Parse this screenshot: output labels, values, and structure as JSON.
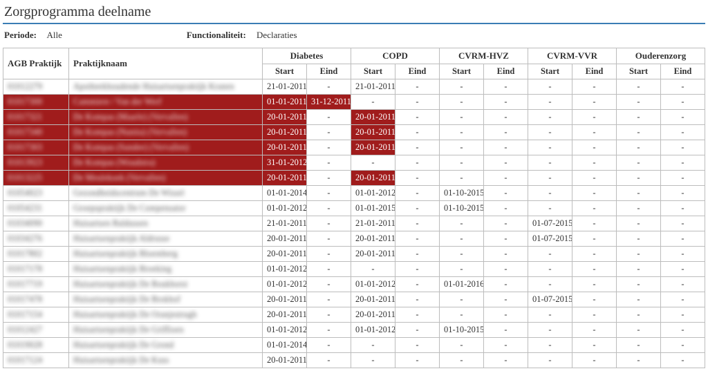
{
  "header": {
    "title": "Zorgprogramma deelname",
    "periode_label": "Periode:",
    "periode_value": "Alle",
    "func_label": "Functionaliteit:",
    "func_value": "Declaraties"
  },
  "table": {
    "col_agb": "AGB Praktijk",
    "col_pnaam": "Praktijknaam",
    "programs": [
      "Diabetes",
      "COPD",
      "CVRM-HVZ",
      "CVRM-VVR",
      "Ouderenzorg"
    ],
    "sub_start": "Start",
    "sub_eind": "Eind",
    "dash": "-",
    "rows": [
      {
        "agb": "01012279",
        "pnaam": "Apotheekhoudende Huisartsenpraktijk Kranen",
        "red": false,
        "cells": [
          {
            "start": "21-01-2011",
            "eind": "-",
            "sRed": false,
            "eRed": false
          },
          {
            "start": "21-01-2011",
            "eind": "-",
            "sRed": false,
            "eRed": false
          },
          {
            "start": "-",
            "eind": "-",
            "sRed": false,
            "eRed": false
          },
          {
            "start": "-",
            "eind": "-",
            "sRed": false,
            "eRed": false
          },
          {
            "start": "-",
            "eind": "-",
            "sRed": false,
            "eRed": false
          }
        ]
      },
      {
        "agb": "01017300",
        "pnaam": "Cammiere / Van der Werf",
        "red": true,
        "cells": [
          {
            "start": "01-01-2011",
            "eind": "31-12-2011",
            "sRed": true,
            "eRed": true
          },
          {
            "start": "-",
            "eind": "-",
            "sRed": false,
            "eRed": false
          },
          {
            "start": "-",
            "eind": "-",
            "sRed": false,
            "eRed": false
          },
          {
            "start": "-",
            "eind": "-",
            "sRed": false,
            "eRed": false
          },
          {
            "start": "-",
            "eind": "-",
            "sRed": false,
            "eRed": false
          }
        ]
      },
      {
        "agb": "01017321",
        "pnaam": "De Kompas (Maarle) (Vervallen)",
        "red": true,
        "cells": [
          {
            "start": "20-01-2011",
            "eind": "-",
            "sRed": true,
            "eRed": false
          },
          {
            "start": "20-01-2011",
            "eind": "-",
            "sRed": true,
            "eRed": false
          },
          {
            "start": "-",
            "eind": "-",
            "sRed": false,
            "eRed": false
          },
          {
            "start": "-",
            "eind": "-",
            "sRed": false,
            "eRed": false
          },
          {
            "start": "-",
            "eind": "-",
            "sRed": false,
            "eRed": false
          }
        ]
      },
      {
        "agb": "01017340",
        "pnaam": "De Kompas (Nunita) (Vervallen)",
        "red": true,
        "cells": [
          {
            "start": "20-01-2011",
            "eind": "-",
            "sRed": true,
            "eRed": false
          },
          {
            "start": "20-01-2011",
            "eind": "-",
            "sRed": true,
            "eRed": false
          },
          {
            "start": "-",
            "eind": "-",
            "sRed": false,
            "eRed": false
          },
          {
            "start": "-",
            "eind": "-",
            "sRed": false,
            "eRed": false
          },
          {
            "start": "-",
            "eind": "-",
            "sRed": false,
            "eRed": false
          }
        ]
      },
      {
        "agb": "01017303",
        "pnaam": "De Kompas (Sundee) (Vervallen)",
        "red": true,
        "cells": [
          {
            "start": "20-01-2011",
            "eind": "-",
            "sRed": true,
            "eRed": false
          },
          {
            "start": "20-01-2011",
            "eind": "-",
            "sRed": true,
            "eRed": false
          },
          {
            "start": "-",
            "eind": "-",
            "sRed": false,
            "eRed": false
          },
          {
            "start": "-",
            "eind": "-",
            "sRed": false,
            "eRed": false
          },
          {
            "start": "-",
            "eind": "-",
            "sRed": false,
            "eRed": false
          }
        ]
      },
      {
        "agb": "01013923",
        "pnaam": "De Kompas (Woudstra)",
        "red": true,
        "cells": [
          {
            "start": "31-01-2012",
            "eind": "-",
            "sRed": true,
            "eRed": false
          },
          {
            "start": "-",
            "eind": "-",
            "sRed": false,
            "eRed": false
          },
          {
            "start": "-",
            "eind": "-",
            "sRed": false,
            "eRed": false
          },
          {
            "start": "-",
            "eind": "-",
            "sRed": false,
            "eRed": false
          },
          {
            "start": "-",
            "eind": "-",
            "sRed": false,
            "eRed": false
          }
        ]
      },
      {
        "agb": "01013225",
        "pnaam": "De Meulekoek (Vervallen)",
        "red": true,
        "cells": [
          {
            "start": "20-01-2011",
            "eind": "-",
            "sRed": true,
            "eRed": false
          },
          {
            "start": "20-01-2011",
            "eind": "-",
            "sRed": true,
            "eRed": false
          },
          {
            "start": "-",
            "eind": "-",
            "sRed": false,
            "eRed": false
          },
          {
            "start": "-",
            "eind": "-",
            "sRed": false,
            "eRed": false
          },
          {
            "start": "-",
            "eind": "-",
            "sRed": false,
            "eRed": false
          }
        ]
      },
      {
        "agb": "01054023",
        "pnaam": "Gezondheidscentrum De Wissel",
        "red": false,
        "cells": [
          {
            "start": "01-01-2014",
            "eind": "-",
            "sRed": false,
            "eRed": false
          },
          {
            "start": "01-01-2012",
            "eind": "-",
            "sRed": false,
            "eRed": false
          },
          {
            "start": "01-10-2015",
            "eind": "-",
            "sRed": false,
            "eRed": false
          },
          {
            "start": "-",
            "eind": "-",
            "sRed": false,
            "eRed": false
          },
          {
            "start": "-",
            "eind": "-",
            "sRed": false,
            "eRed": false
          }
        ]
      },
      {
        "agb": "01054231",
        "pnaam": "Groepspraktijk De Compensator",
        "red": false,
        "cells": [
          {
            "start": "01-01-2012",
            "eind": "-",
            "sRed": false,
            "eRed": false
          },
          {
            "start": "01-01-2015",
            "eind": "-",
            "sRed": false,
            "eRed": false
          },
          {
            "start": "01-10-2015",
            "eind": "-",
            "sRed": false,
            "eRed": false
          },
          {
            "start": "-",
            "eind": "-",
            "sRed": false,
            "eRed": false
          },
          {
            "start": "-",
            "eind": "-",
            "sRed": false,
            "eRed": false
          }
        ]
      },
      {
        "agb": "01034090",
        "pnaam": "Huisartsen Baldussen",
        "red": false,
        "cells": [
          {
            "start": "21-01-2011",
            "eind": "-",
            "sRed": false,
            "eRed": false
          },
          {
            "start": "21-01-2011",
            "eind": "-",
            "sRed": false,
            "eRed": false
          },
          {
            "start": "-",
            "eind": "-",
            "sRed": false,
            "eRed": false
          },
          {
            "start": "01-07-2015",
            "eind": "-",
            "sRed": false,
            "eRed": false
          },
          {
            "start": "-",
            "eind": "-",
            "sRed": false,
            "eRed": false
          }
        ]
      },
      {
        "agb": "01034276",
        "pnaam": "Huisartsenpraktijk Aldrusse",
        "red": false,
        "cells": [
          {
            "start": "20-01-2011",
            "eind": "-",
            "sRed": false,
            "eRed": false
          },
          {
            "start": "20-01-2011",
            "eind": "-",
            "sRed": false,
            "eRed": false
          },
          {
            "start": "-",
            "eind": "-",
            "sRed": false,
            "eRed": false
          },
          {
            "start": "01-07-2015",
            "eind": "-",
            "sRed": false,
            "eRed": false
          },
          {
            "start": "-",
            "eind": "-",
            "sRed": false,
            "eRed": false
          }
        ]
      },
      {
        "agb": "01017802",
        "pnaam": "Huisartsenpraktijk Bloemberg",
        "red": false,
        "cells": [
          {
            "start": "20-01-2011",
            "eind": "-",
            "sRed": false,
            "eRed": false
          },
          {
            "start": "20-01-2011",
            "eind": "-",
            "sRed": false,
            "eRed": false
          },
          {
            "start": "-",
            "eind": "-",
            "sRed": false,
            "eRed": false
          },
          {
            "start": "-",
            "eind": "-",
            "sRed": false,
            "eRed": false
          },
          {
            "start": "-",
            "eind": "-",
            "sRed": false,
            "eRed": false
          }
        ]
      },
      {
        "agb": "01017178",
        "pnaam": "Huisartsenpraktijk Broeking",
        "red": false,
        "cells": [
          {
            "start": "01-01-2012",
            "eind": "-",
            "sRed": false,
            "eRed": false
          },
          {
            "start": "-",
            "eind": "-",
            "sRed": false,
            "eRed": false
          },
          {
            "start": "-",
            "eind": "-",
            "sRed": false,
            "eRed": false
          },
          {
            "start": "-",
            "eind": "-",
            "sRed": false,
            "eRed": false
          },
          {
            "start": "-",
            "eind": "-",
            "sRed": false,
            "eRed": false
          }
        ]
      },
      {
        "agb": "01017719",
        "pnaam": "Huisartsenpraktijk De Boukhorst",
        "red": false,
        "cells": [
          {
            "start": "01-01-2012",
            "eind": "-",
            "sRed": false,
            "eRed": false
          },
          {
            "start": "01-01-2012",
            "eind": "-",
            "sRed": false,
            "eRed": false
          },
          {
            "start": "01-01-2016",
            "eind": "-",
            "sRed": false,
            "eRed": false
          },
          {
            "start": "-",
            "eind": "-",
            "sRed": false,
            "eRed": false
          },
          {
            "start": "-",
            "eind": "-",
            "sRed": false,
            "eRed": false
          }
        ]
      },
      {
        "agb": "01017478",
        "pnaam": "Huisartsenpraktijk De Brokhof",
        "red": false,
        "cells": [
          {
            "start": "20-01-2011",
            "eind": "-",
            "sRed": false,
            "eRed": false
          },
          {
            "start": "20-01-2011",
            "eind": "-",
            "sRed": false,
            "eRed": false
          },
          {
            "start": "-",
            "eind": "-",
            "sRed": false,
            "eRed": false
          },
          {
            "start": "01-07-2015",
            "eind": "-",
            "sRed": false,
            "eRed": false
          },
          {
            "start": "-",
            "eind": "-",
            "sRed": false,
            "eRed": false
          }
        ]
      },
      {
        "agb": "01017154",
        "pnaam": "Huisartsenpraktijk De Oranjestrugh",
        "red": false,
        "cells": [
          {
            "start": "20-01-2011",
            "eind": "-",
            "sRed": false,
            "eRed": false
          },
          {
            "start": "20-01-2011",
            "eind": "-",
            "sRed": false,
            "eRed": false
          },
          {
            "start": "-",
            "eind": "-",
            "sRed": false,
            "eRed": false
          },
          {
            "start": "-",
            "eind": "-",
            "sRed": false,
            "eRed": false
          },
          {
            "start": "-",
            "eind": "-",
            "sRed": false,
            "eRed": false
          }
        ]
      },
      {
        "agb": "01012427",
        "pnaam": "Huisartsenpraktijk De Griffioen",
        "red": false,
        "cells": [
          {
            "start": "01-01-2012",
            "eind": "-",
            "sRed": false,
            "eRed": false
          },
          {
            "start": "01-01-2012",
            "eind": "-",
            "sRed": false,
            "eRed": false
          },
          {
            "start": "01-10-2015",
            "eind": "-",
            "sRed": false,
            "eRed": false
          },
          {
            "start": "-",
            "eind": "-",
            "sRed": false,
            "eRed": false
          },
          {
            "start": "-",
            "eind": "-",
            "sRed": false,
            "eRed": false
          }
        ]
      },
      {
        "agb": "01019028",
        "pnaam": "Huisartsenpraktijk De Grond",
        "red": false,
        "cells": [
          {
            "start": "01-01-2014",
            "eind": "-",
            "sRed": false,
            "eRed": false
          },
          {
            "start": "-",
            "eind": "-",
            "sRed": false,
            "eRed": false
          },
          {
            "start": "-",
            "eind": "-",
            "sRed": false,
            "eRed": false
          },
          {
            "start": "-",
            "eind": "-",
            "sRed": false,
            "eRed": false
          },
          {
            "start": "-",
            "eind": "-",
            "sRed": false,
            "eRed": false
          }
        ]
      },
      {
        "agb": "01017124",
        "pnaam": "Huisartsenpraktijk De Kuss",
        "red": false,
        "cells": [
          {
            "start": "20-01-2011",
            "eind": "-",
            "sRed": false,
            "eRed": false
          },
          {
            "start": "-",
            "eind": "-",
            "sRed": false,
            "eRed": false
          },
          {
            "start": "-",
            "eind": "-",
            "sRed": false,
            "eRed": false
          },
          {
            "start": "-",
            "eind": "-",
            "sRed": false,
            "eRed": false
          },
          {
            "start": "-",
            "eind": "-",
            "sRed": false,
            "eRed": false
          }
        ]
      }
    ]
  },
  "colors": {
    "accent_blue": "#3a7db5",
    "red_bg": "#a01c1c",
    "border": "#bcbcbc"
  }
}
